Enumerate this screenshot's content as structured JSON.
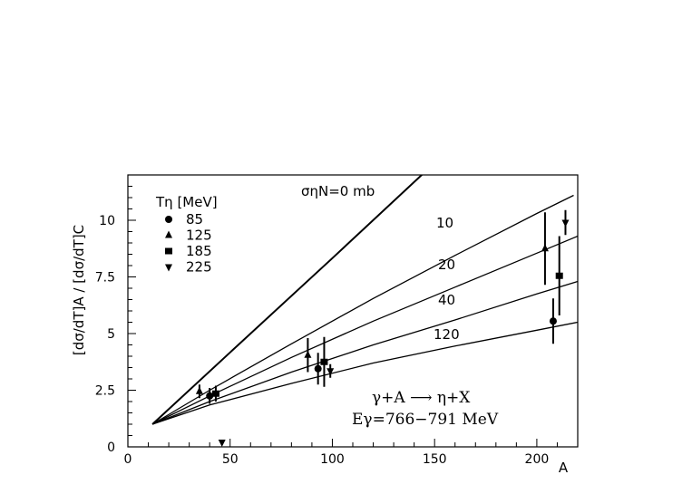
{
  "chart_data": {
    "type": "scatter",
    "title": "",
    "xlabel": "A",
    "ylabel": "[dσ/dT]A / [dσ/dT]C",
    "xlim": [
      0,
      220
    ],
    "ylim": [
      0,
      12
    ],
    "x_ticks": [
      0,
      50,
      100,
      150,
      200
    ],
    "x_tick_labels": [
      "0",
      "50",
      "100",
      "150",
      "200"
    ],
    "y_ticks": [
      0,
      2.5,
      5,
      7.5,
      10
    ],
    "y_tick_labels": [
      "0",
      "2.5",
      "5",
      "7.5",
      "10"
    ],
    "grid": false,
    "legend": {
      "title": "Tη [MeV]",
      "placement": "top-left",
      "entries": [
        {
          "label": "85",
          "marker": "circle"
        },
        {
          "label": "125",
          "marker": "triangle-up"
        },
        {
          "label": "185",
          "marker": "square"
        },
        {
          "label": "225",
          "marker": "triangle-down"
        }
      ]
    },
    "curves": [
      {
        "label": "σηN=0 mb",
        "points": [
          [
            12,
            1.0
          ],
          [
            50,
            4.17
          ],
          [
            100,
            8.33
          ],
          [
            158,
            13.2
          ]
        ]
      },
      {
        "label": "10",
        "points": [
          [
            12,
            1.0
          ],
          [
            40,
            2.5
          ],
          [
            80,
            4.55
          ],
          [
            120,
            6.55
          ],
          [
            160,
            8.45
          ],
          [
            200,
            10.3
          ],
          [
            218,
            11.1
          ]
        ]
      },
      {
        "label": "20",
        "points": [
          [
            12,
            1.0
          ],
          [
            40,
            2.25
          ],
          [
            80,
            3.95
          ],
          [
            120,
            5.55
          ],
          [
            160,
            7.05
          ],
          [
            200,
            8.55
          ],
          [
            220,
            9.3
          ]
        ]
      },
      {
        "label": "40",
        "points": [
          [
            12,
            1.0
          ],
          [
            40,
            2.0
          ],
          [
            80,
            3.3
          ],
          [
            120,
            4.5
          ],
          [
            160,
            5.6
          ],
          [
            200,
            6.75
          ],
          [
            220,
            7.3
          ]
        ]
      },
      {
        "label": "120",
        "points": [
          [
            12,
            1.0
          ],
          [
            40,
            1.85
          ],
          [
            80,
            2.8
          ],
          [
            120,
            3.7
          ],
          [
            160,
            4.45
          ],
          [
            200,
            5.15
          ],
          [
            220,
            5.5
          ]
        ]
      }
    ],
    "series": [
      {
        "name": "85",
        "marker": "circle",
        "points": [
          {
            "x": 40,
            "y": 2.25,
            "err": 0.35
          },
          {
            "x": 93,
            "y": 3.45,
            "err": 0.7
          },
          {
            "x": 208,
            "y": 5.55,
            "err": 1.0
          }
        ]
      },
      {
        "name": "125",
        "marker": "triangle-up",
        "points": [
          {
            "x": 35,
            "y": 2.45,
            "err": 0.3
          },
          {
            "x": 88,
            "y": 4.05,
            "err": 0.75
          },
          {
            "x": 204,
            "y": 8.75,
            "err": 1.6
          }
        ]
      },
      {
        "name": "185",
        "marker": "square",
        "points": [
          {
            "x": 43,
            "y": 2.35,
            "err": 0.35
          },
          {
            "x": 96,
            "y": 3.75,
            "err": 1.1
          },
          {
            "x": 211,
            "y": 7.55,
            "err": 1.75
          }
        ]
      },
      {
        "name": "225",
        "marker": "triangle-down",
        "points": [
          {
            "x": 46,
            "y": 0.2,
            "err": 0
          },
          {
            "x": 99,
            "y": 3.35,
            "err": 0.3
          },
          {
            "x": 214,
            "y": 9.9,
            "err": 0.55
          }
        ]
      }
    ],
    "annotations": [
      "γ+A ⟶ η+X",
      "Eγ=766−791 MeV"
    ]
  }
}
